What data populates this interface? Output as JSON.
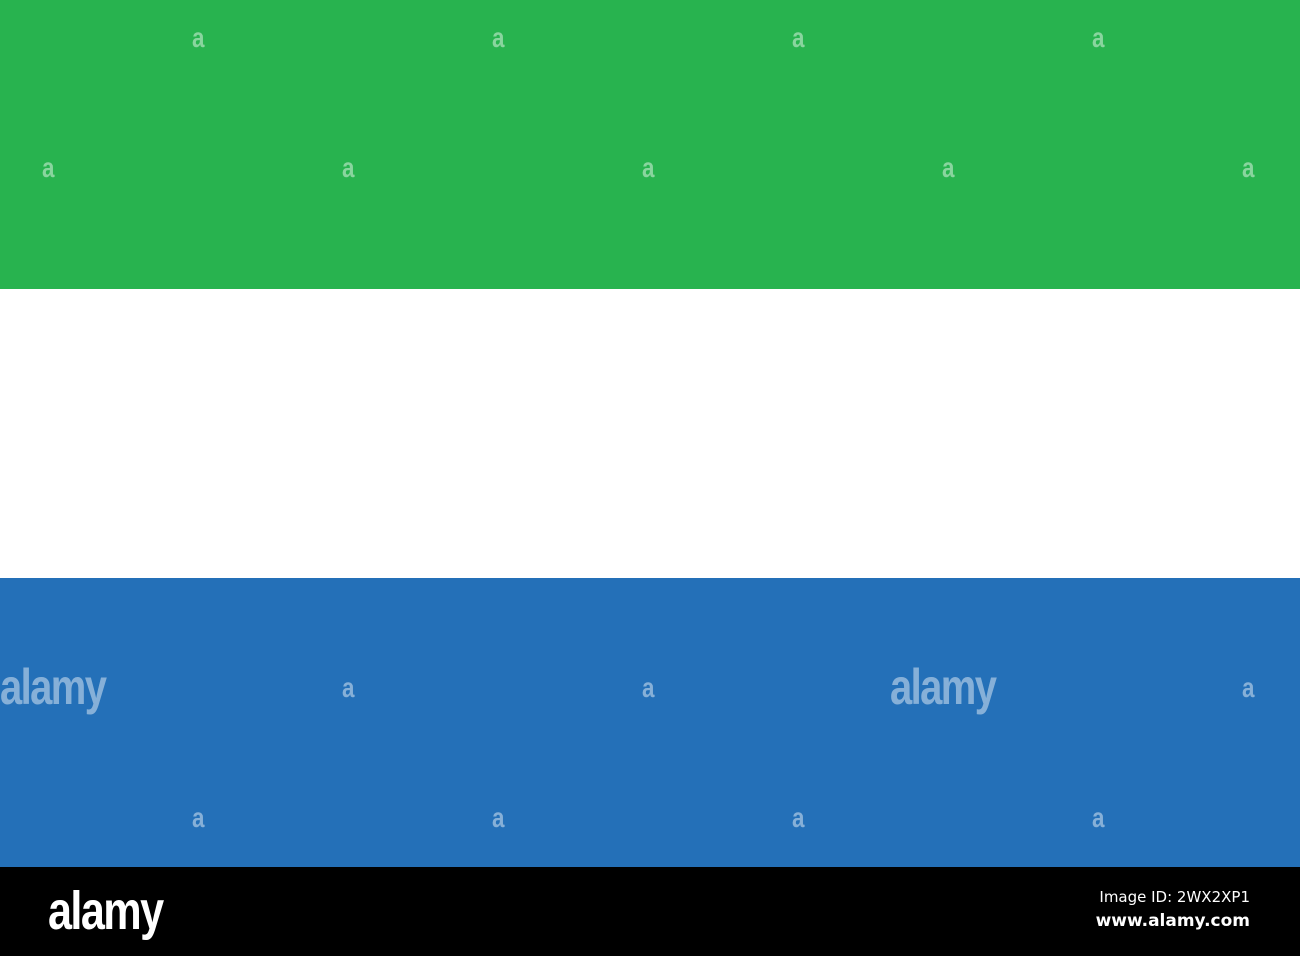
{
  "flag": {
    "colors": {
      "top": "#28b34f",
      "middle": "#ffffff",
      "bottom": "#2470b8"
    }
  },
  "watermark": {
    "glyph": "a",
    "word": "alamy"
  },
  "footer": {
    "logo": "alamy",
    "image_id": "Image ID: 2WX2XP1",
    "site": "www.alamy.com"
  }
}
